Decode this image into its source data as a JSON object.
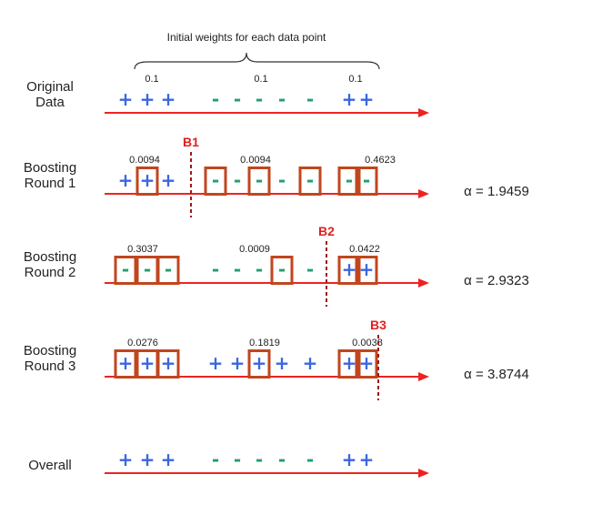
{
  "header": {
    "caption": "Initial weights for each data point"
  },
  "colors": {
    "plus": "#3a66e0",
    "minus": "#22a06b",
    "axis": "#ee2222",
    "box": "#c0461e",
    "boundary": "#9a1a1a",
    "boundary_label": "#e02020"
  },
  "rows": [
    {
      "label_line1": "Original",
      "label_line2": "Data",
      "symbols": [
        "+",
        "+",
        "+",
        "-",
        "-",
        "-",
        "-",
        "-",
        "+",
        "+"
      ],
      "weights": [
        "0.1",
        "0.1",
        "0.1"
      ],
      "boxed": [],
      "boundary": "",
      "alpha": ""
    },
    {
      "label_line1": "Boosting",
      "label_line2": "Round 1",
      "symbols": [
        "+",
        "+",
        "+",
        "-",
        "-",
        "-",
        "-",
        "-",
        "-",
        "-"
      ],
      "weights": [
        "0.0094",
        "0.0094",
        "0.4623"
      ],
      "boxed": [
        1,
        3,
        5,
        7,
        8,
        9
      ],
      "boundary": "B1",
      "alpha": "α = 1.9459"
    },
    {
      "label_line1": "Boosting",
      "label_line2": "Round 2",
      "symbols": [
        "-",
        "-",
        "-",
        "-",
        "-",
        "-",
        "-",
        "-",
        "+",
        "+"
      ],
      "weights": [
        "0.3037",
        "0.0009",
        "0.0422"
      ],
      "boxed": [
        0,
        1,
        2,
        6,
        8,
        9
      ],
      "boundary": "B2",
      "alpha": "α = 2.9323"
    },
    {
      "label_line1": "Boosting",
      "label_line2": "Round 3",
      "symbols": [
        "+",
        "+",
        "+",
        "+",
        "+",
        "+",
        "+",
        "+",
        "+",
        "+"
      ],
      "weights": [
        "0.0276",
        "0.1819",
        "0.0038"
      ],
      "boxed": [
        0,
        1,
        2,
        5,
        8,
        9
      ],
      "boundary": "B3",
      "alpha": "α = 3.8744"
    },
    {
      "label_line1": "Overall",
      "label_line2": "",
      "symbols": [
        "+",
        "+",
        "+",
        "-",
        "-",
        "-",
        "-",
        "-",
        "+",
        "+"
      ],
      "weights": [],
      "boxed": [],
      "boundary": "",
      "alpha": ""
    }
  ]
}
